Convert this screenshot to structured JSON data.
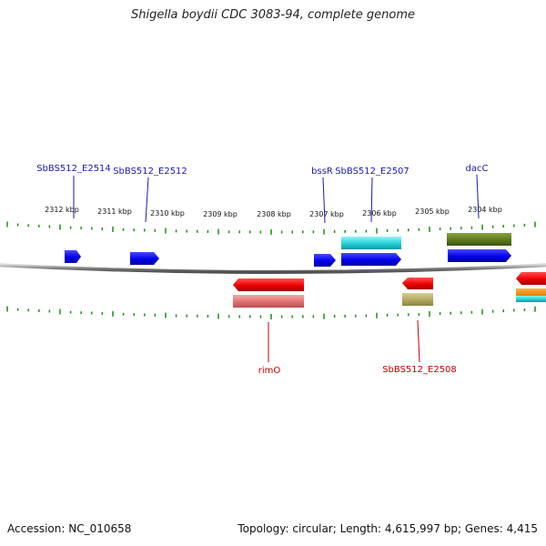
{
  "title": "Shigella boydii CDC 3083-94, complete genome",
  "footer": {
    "accession": "Accession: NC_010658",
    "summary": "Topology: circular; Length: 4,615,997 bp; Genes: 4,415"
  },
  "colors": {
    "label_top": "#1a1aa6",
    "label_bottom": "#c00000",
    "tick": "#1e8c1e",
    "backbone": "#8c8c8c"
  },
  "scale": [
    "2312 kbp",
    "2311 kbp",
    "2310 kbp",
    "2309 kbp",
    "2308 kbp",
    "2307 kbp",
    "2306 kbp",
    "2305 kbp",
    "2304 kbp"
  ],
  "top_labels": [
    "SbBS512_E2514",
    "SbBS512_E2512",
    "bssR",
    "SbBS512_E2507",
    "dacC"
  ],
  "bottom_labels": [
    "rimO",
    "SbBS512_E2508"
  ]
}
